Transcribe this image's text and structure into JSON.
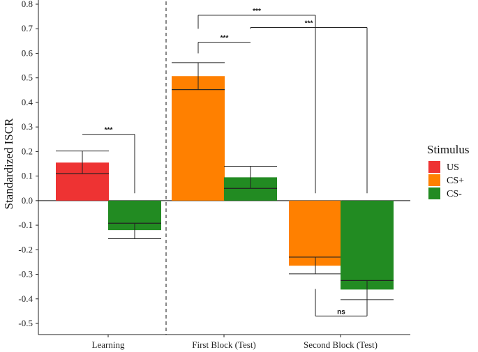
{
  "chart_data": {
    "type": "bar",
    "ylabel": "Standardized ISCR",
    "xlabel": "",
    "ylim": [
      -0.5,
      0.8
    ],
    "yticks": [
      -0.5,
      -0.4,
      -0.3,
      -0.2,
      -0.1,
      0.0,
      0.1,
      0.2,
      0.3,
      0.4,
      0.5,
      0.6,
      0.7,
      0.8
    ],
    "ytick_labels": [
      "-0.5",
      "-0.4",
      "-0.3",
      "-0.2",
      "-0.1",
      "0.0",
      "0.1",
      "0.2",
      "0.3",
      "0.4",
      "0.5",
      "0.6",
      "0.7",
      "0.8"
    ],
    "categories": [
      "Learning",
      "First Block (Test)",
      "Second Block (Test)"
    ],
    "legend": {
      "title": "Stimulus",
      "items": [
        {
          "label": "US",
          "color": "#ee3333"
        },
        {
          "label": "CS+",
          "color": "#ff8000"
        },
        {
          "label": "CS-",
          "color": "#228b22"
        }
      ],
      "placement": "right"
    },
    "bars": [
      {
        "category": "Learning",
        "stimulus": "US",
        "value": 0.155,
        "median": 0.11,
        "err_low": 0.11,
        "err_high": 0.202
      },
      {
        "category": "Learning",
        "stimulus": "CS-",
        "value": -0.12,
        "median": -0.092,
        "err_low": -0.155,
        "err_high": -0.092
      },
      {
        "category": "First Block (Test)",
        "stimulus": "CS+",
        "value": 0.507,
        "median": 0.452,
        "err_low": 0.452,
        "err_high": 0.562
      },
      {
        "category": "First Block (Test)",
        "stimulus": "CS-",
        "value": 0.095,
        "median": 0.05,
        "err_low": 0.05,
        "err_high": 0.14
      },
      {
        "category": "Second Block (Test)",
        "stimulus": "CS+",
        "value": -0.265,
        "median": -0.23,
        "err_low": -0.298,
        "err_high": -0.23
      },
      {
        "category": "Second Block (Test)",
        "stimulus": "CS-",
        "value": -0.362,
        "median": -0.325,
        "err_low": -0.403,
        "err_high": -0.325
      }
    ],
    "significance": [
      {
        "from": 0,
        "to": 1,
        "label": "***",
        "y": 0.27,
        "drop_from": 0.27,
        "drop_to": 0.03
      },
      {
        "from": 2,
        "to": 3,
        "label": "***",
        "y": 0.645,
        "drop_from": 0.6,
        "drop_to": 0.645
      },
      {
        "from": 2,
        "to": 4,
        "label": "***",
        "y": 0.755,
        "drop_from": 0.7,
        "drop_to": 0.03
      },
      {
        "from": 3,
        "to": 5,
        "label": "***",
        "y": 0.705,
        "drop_from": 0.7,
        "drop_to": 0.03
      },
      {
        "from": 4,
        "to": 5,
        "label": "ns",
        "y": -0.47,
        "drop_from": -0.47,
        "drop_to": -0.47
      }
    ],
    "grid": false
  }
}
